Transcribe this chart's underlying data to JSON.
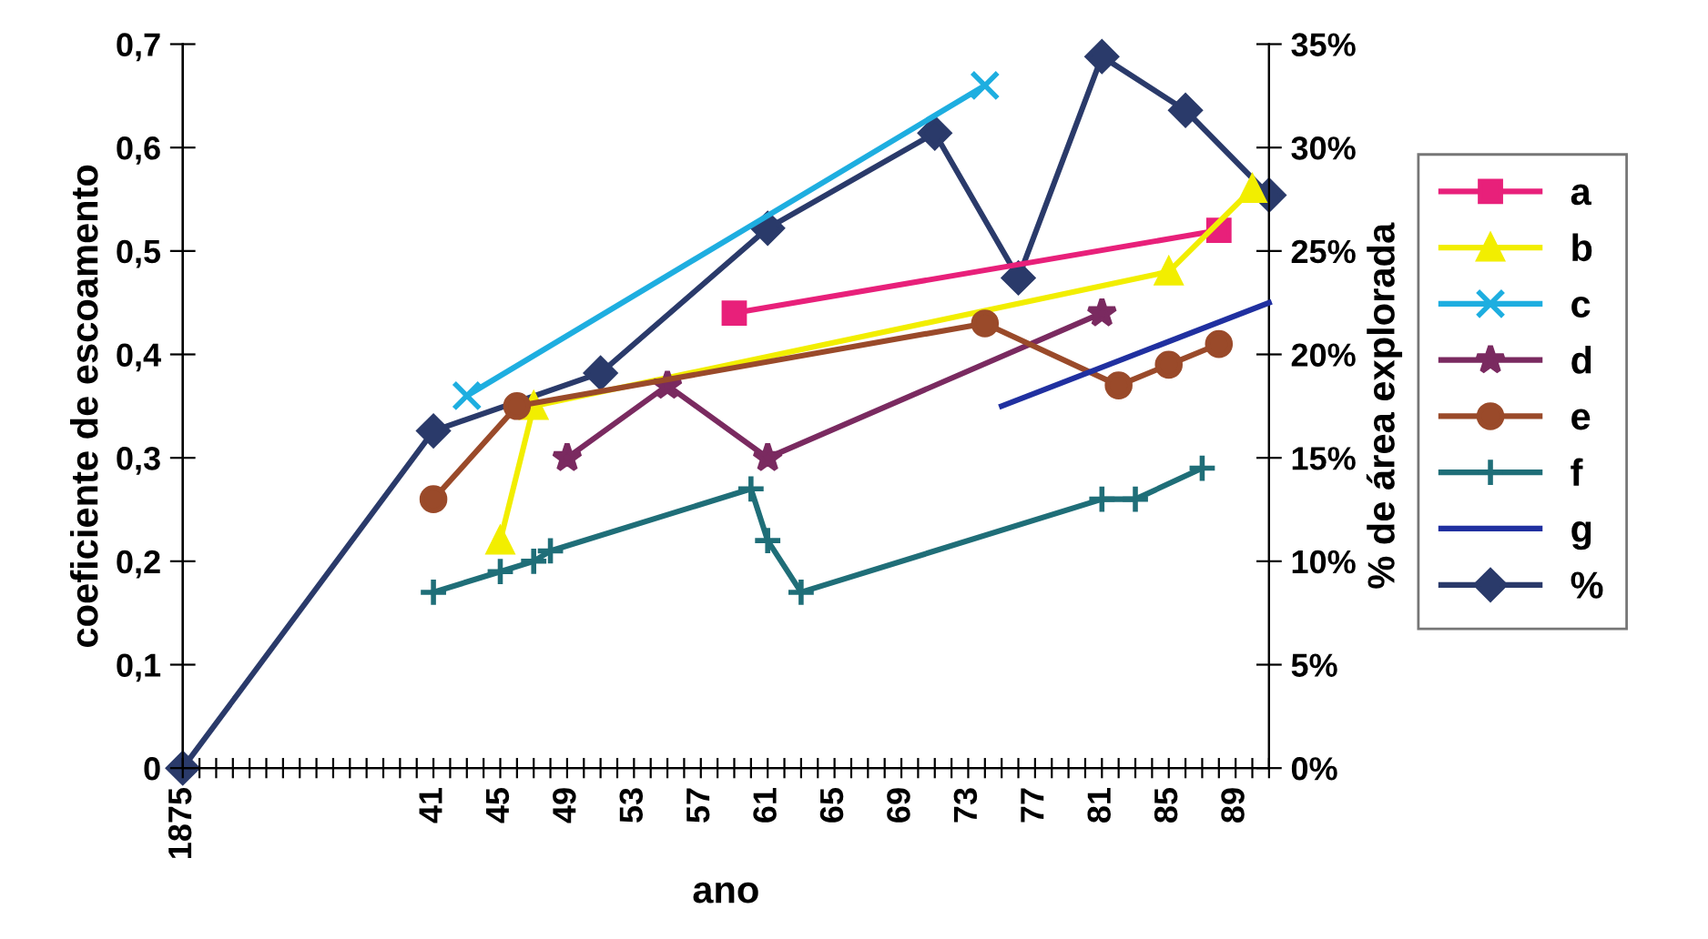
{
  "chart_data": {
    "type": "line",
    "xlabel": "ano",
    "ylabel": "coeficiente de escoamento",
    "y2label": "% de área explorada",
    "categories": [
      "1875",
      null,
      null,
      null,
      null,
      null,
      null,
      null,
      null,
      null,
      null,
      null,
      null,
      null,
      null,
      "41",
      null,
      null,
      null,
      "45",
      null,
      null,
      null,
      "49",
      null,
      null,
      null,
      "53",
      null,
      null,
      null,
      "57",
      null,
      null,
      null,
      "61",
      null,
      null,
      null,
      "65",
      null,
      null,
      null,
      "69",
      null,
      null,
      null,
      "73",
      null,
      null,
      null,
      "77",
      null,
      null,
      null,
      "81",
      null,
      null,
      null,
      "85",
      null,
      null,
      null,
      "89",
      null,
      null
    ],
    "ylim": [
      0,
      0.7
    ],
    "yticks": [
      0,
      {
        "value": 0.1,
        "label": "0,1"
      },
      {
        "value": 0.2,
        "label": "0,2"
      },
      {
        "value": 0.3,
        "label": "0,3"
      },
      {
        "value": 0.4,
        "label": "0,4"
      },
      {
        "value": 0.5,
        "label": "0,5"
      },
      {
        "value": 0.6,
        "label": "0,6"
      },
      {
        "value": 0.7,
        "label": "0,7"
      }
    ],
    "y2lim": [
      0,
      35
    ],
    "y2ticks": [
      {
        "value": 0,
        "label": "0%"
      },
      {
        "value": 5,
        "label": "5%"
      },
      {
        "value": 10,
        "label": "10%"
      },
      {
        "value": 15,
        "label": "15%"
      },
      {
        "value": 20,
        "label": "20%"
      },
      {
        "value": 25,
        "label": "25%"
      },
      {
        "value": 30,
        "label": "30%"
      },
      {
        "value": 35,
        "label": "35%"
      }
    ],
    "grid": false,
    "legend": "right",
    "series": [
      {
        "name": "a",
        "color": "#e8207a",
        "marker": "square",
        "values": [
          null,
          null,
          null,
          null,
          null,
          null,
          null,
          null,
          null,
          null,
          null,
          null,
          null,
          null,
          null,
          null,
          null,
          null,
          null,
          null,
          null,
          null,
          null,
          null,
          null,
          null,
          null,
          null,
          null,
          null,
          null,
          null,
          null,
          0.44,
          null,
          null,
          null,
          null,
          null,
          null,
          null,
          null,
          null,
          null,
          null,
          null,
          null,
          null,
          null,
          null,
          null,
          null,
          null,
          null,
          null,
          null,
          null,
          null,
          null,
          null,
          null,
          null,
          0.52,
          null,
          null,
          null
        ]
      },
      {
        "name": "b",
        "color": "#f2ee00",
        "marker": "triangle",
        "values": [
          null,
          null,
          null,
          null,
          null,
          null,
          null,
          null,
          null,
          null,
          null,
          null,
          null,
          null,
          null,
          null,
          null,
          null,
          null,
          0.22,
          null,
          0.35,
          null,
          null,
          null,
          null,
          null,
          null,
          null,
          null,
          null,
          null,
          null,
          null,
          null,
          null,
          null,
          null,
          null,
          null,
          null,
          null,
          null,
          null,
          null,
          null,
          null,
          null,
          null,
          null,
          null,
          null,
          null,
          null,
          null,
          null,
          null,
          null,
          null,
          0.48,
          null,
          null,
          null,
          null,
          0.56,
          null
        ]
      },
      {
        "name": "c",
        "color": "#1eaee0",
        "marker": "cross",
        "values": [
          null,
          null,
          null,
          null,
          null,
          null,
          null,
          null,
          null,
          null,
          null,
          null,
          null,
          null,
          null,
          null,
          null,
          0.36,
          null,
          null,
          null,
          null,
          null,
          null,
          null,
          null,
          null,
          null,
          null,
          null,
          null,
          null,
          null,
          null,
          null,
          null,
          null,
          null,
          null,
          null,
          null,
          null,
          null,
          null,
          null,
          null,
          null,
          null,
          0.66,
          null,
          null,
          null,
          null,
          null,
          null,
          null,
          null,
          null,
          null,
          null,
          null,
          null,
          null,
          null,
          null,
          null
        ]
      },
      {
        "name": "d",
        "color": "#7a2a60",
        "marker": "star",
        "values": [
          null,
          null,
          null,
          null,
          null,
          null,
          null,
          null,
          null,
          null,
          null,
          null,
          null,
          null,
          null,
          null,
          null,
          null,
          null,
          null,
          null,
          null,
          null,
          0.3,
          null,
          null,
          null,
          null,
          null,
          0.37,
          null,
          null,
          null,
          null,
          null,
          0.3,
          null,
          null,
          null,
          null,
          null,
          null,
          null,
          null,
          null,
          null,
          null,
          null,
          null,
          null,
          null,
          null,
          null,
          null,
          null,
          0.44,
          null,
          null,
          null,
          null,
          null,
          null,
          null,
          null,
          null,
          null
        ]
      },
      {
        "name": "e",
        "color": "#9a4a2a",
        "marker": "circle",
        "values": [
          null,
          null,
          null,
          null,
          null,
          null,
          null,
          null,
          null,
          null,
          null,
          null,
          null,
          null,
          null,
          0.26,
          null,
          null,
          null,
          null,
          0.35,
          null,
          null,
          null,
          null,
          null,
          null,
          null,
          null,
          null,
          null,
          null,
          null,
          null,
          null,
          null,
          null,
          null,
          null,
          null,
          null,
          null,
          null,
          null,
          null,
          null,
          null,
          null,
          0.43,
          null,
          null,
          null,
          null,
          null,
          null,
          null,
          0.37,
          null,
          null,
          0.39,
          null,
          null,
          0.41,
          null,
          null,
          null
        ]
      },
      {
        "name": "f",
        "color": "#1f6e78",
        "marker": "plus",
        "values": [
          null,
          null,
          null,
          null,
          null,
          null,
          null,
          null,
          null,
          null,
          null,
          null,
          null,
          null,
          null,
          0.17,
          null,
          null,
          null,
          0.19,
          null,
          0.2,
          0.21,
          null,
          null,
          null,
          null,
          null,
          null,
          null,
          null,
          null,
          null,
          null,
          0.27,
          0.22,
          null,
          0.17,
          null,
          null,
          null,
          null,
          null,
          null,
          null,
          null,
          null,
          null,
          null,
          null,
          null,
          null,
          null,
          null,
          null,
          0.26,
          null,
          0.26,
          null,
          null,
          null,
          0.29,
          null,
          null,
          null,
          null
        ]
      },
      {
        "name": "g",
        "color": "#2030a0",
        "marker": "none",
        "values": [
          null,
          null,
          null,
          null,
          null,
          null,
          null,
          null,
          null,
          null,
          null,
          null,
          null,
          null,
          null,
          null,
          null,
          null,
          null,
          null,
          null,
          null,
          null,
          null,
          null,
          null,
          null,
          null,
          null,
          null,
          null,
          null,
          null,
          null,
          null,
          null,
          null,
          null,
          null,
          null,
          null,
          null,
          null,
          null,
          null,
          null,
          null,
          null,
          null,
          0.35,
          null,
          null,
          null,
          null,
          null,
          null,
          null,
          null,
          null,
          null,
          null,
          null,
          null,
          null,
          null,
          0.45
        ]
      },
      {
        "name": "%",
        "color": "#2a3a6a",
        "marker": "diamond",
        "axis": "y2",
        "values": [
          0,
          null,
          null,
          null,
          null,
          null,
          null,
          null,
          null,
          null,
          null,
          null,
          null,
          null,
          null,
          16.3,
          null,
          null,
          null,
          null,
          null,
          null,
          null,
          null,
          null,
          19.1,
          null,
          null,
          null,
          null,
          null,
          null,
          null,
          null,
          null,
          26.1,
          null,
          null,
          null,
          null,
          null,
          null,
          null,
          null,
          null,
          30.7,
          null,
          null,
          null,
          null,
          23.7,
          null,
          null,
          null,
          null,
          34.4,
          null,
          null,
          null,
          null,
          31.8,
          null,
          null,
          null,
          null,
          27.7
        ]
      }
    ]
  }
}
